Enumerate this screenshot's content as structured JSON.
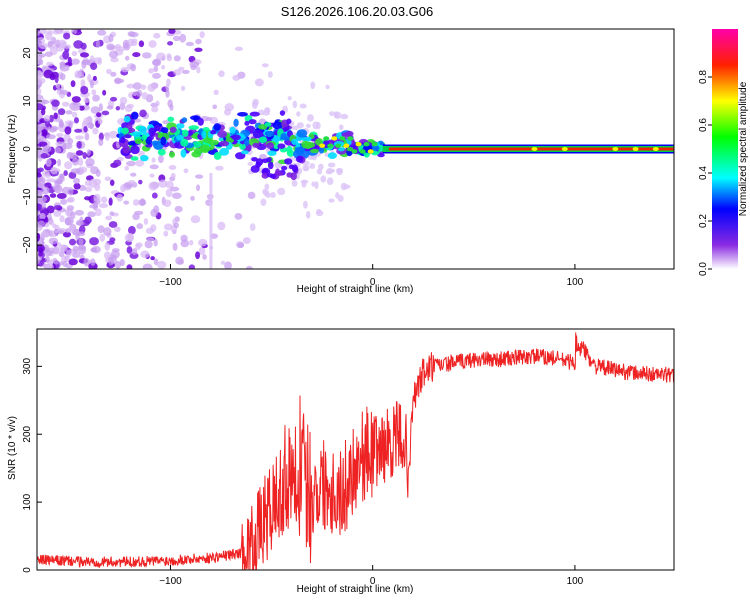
{
  "title": "S126.2026.106.20.03.G06",
  "chart_data": [
    {
      "type": "heatmap",
      "xlabel": "Height of straight line (km)",
      "ylabel": "Frequency (Hz)",
      "xlim": [
        -166,
        149
      ],
      "ylim": [
        -25,
        25
      ],
      "xticks": [
        -100,
        0,
        100
      ],
      "yticks": [
        -20,
        -10,
        0,
        10,
        20
      ],
      "colorbar": {
        "label": "Normalized spectral amplitude",
        "ticks": [
          0.0,
          0.2,
          0.4,
          0.6,
          0.8
        ],
        "range": [
          0,
          1
        ],
        "colors": [
          "#ffffff",
          "#8a2be2",
          "#0000ff",
          "#00ffff",
          "#00ff00",
          "#ffff00",
          "#ff0000",
          "#ff00aa"
        ]
      },
      "ridge": {
        "description_points": [
          {
            "x": -120,
            "y": 2,
            "amp": 0.3
          },
          {
            "x": -100,
            "y": 2,
            "amp": 0.35
          },
          {
            "x": -80,
            "y": 3,
            "amp": 0.35
          },
          {
            "x": -60,
            "y": 3,
            "amp": 0.3
          },
          {
            "x": -40,
            "y": 1,
            "amp": 0.3
          },
          {
            "x": -25,
            "y": 1,
            "amp": 0.4
          },
          {
            "x": -10,
            "y": 0.5,
            "amp": 0.5
          },
          {
            "x": 0,
            "y": 0,
            "amp": 0.6
          },
          {
            "x": 10,
            "y": 0,
            "amp": 0.9
          },
          {
            "x": 80,
            "y": 0,
            "amp": 0.9
          },
          {
            "x": 149,
            "y": 0,
            "amp": 0.85
          }
        ]
      }
    },
    {
      "type": "line",
      "xlabel": "Height of straight line (km)",
      "ylabel": "SNR (10 * v/v)",
      "xlim": [
        -166,
        149
      ],
      "ylim": [
        0,
        355
      ],
      "xticks": [
        -100,
        0,
        100
      ],
      "yticks": [
        0,
        100,
        200,
        300
      ],
      "series": [
        {
          "name": "SNR",
          "color": "#ee2222",
          "x": [
            -166,
            -140,
            -120,
            -100,
            -80,
            -65,
            -60,
            -50,
            -45,
            -40,
            -35,
            -30,
            -25,
            -20,
            -15,
            -10,
            -5,
            0,
            5,
            10,
            15,
            18,
            20,
            25,
            30,
            40,
            50,
            60,
            70,
            80,
            90,
            100,
            103,
            110,
            120,
            130,
            140,
            149
          ],
          "y": [
            15,
            12,
            12,
            14,
            18,
            25,
            40,
            90,
            120,
            160,
            140,
            110,
            130,
            120,
            110,
            150,
            170,
            175,
            180,
            190,
            200,
            150,
            250,
            290,
            300,
            305,
            310,
            310,
            312,
            315,
            312,
            305,
            330,
            300,
            295,
            290,
            288,
            287
          ]
        }
      ]
    }
  ]
}
